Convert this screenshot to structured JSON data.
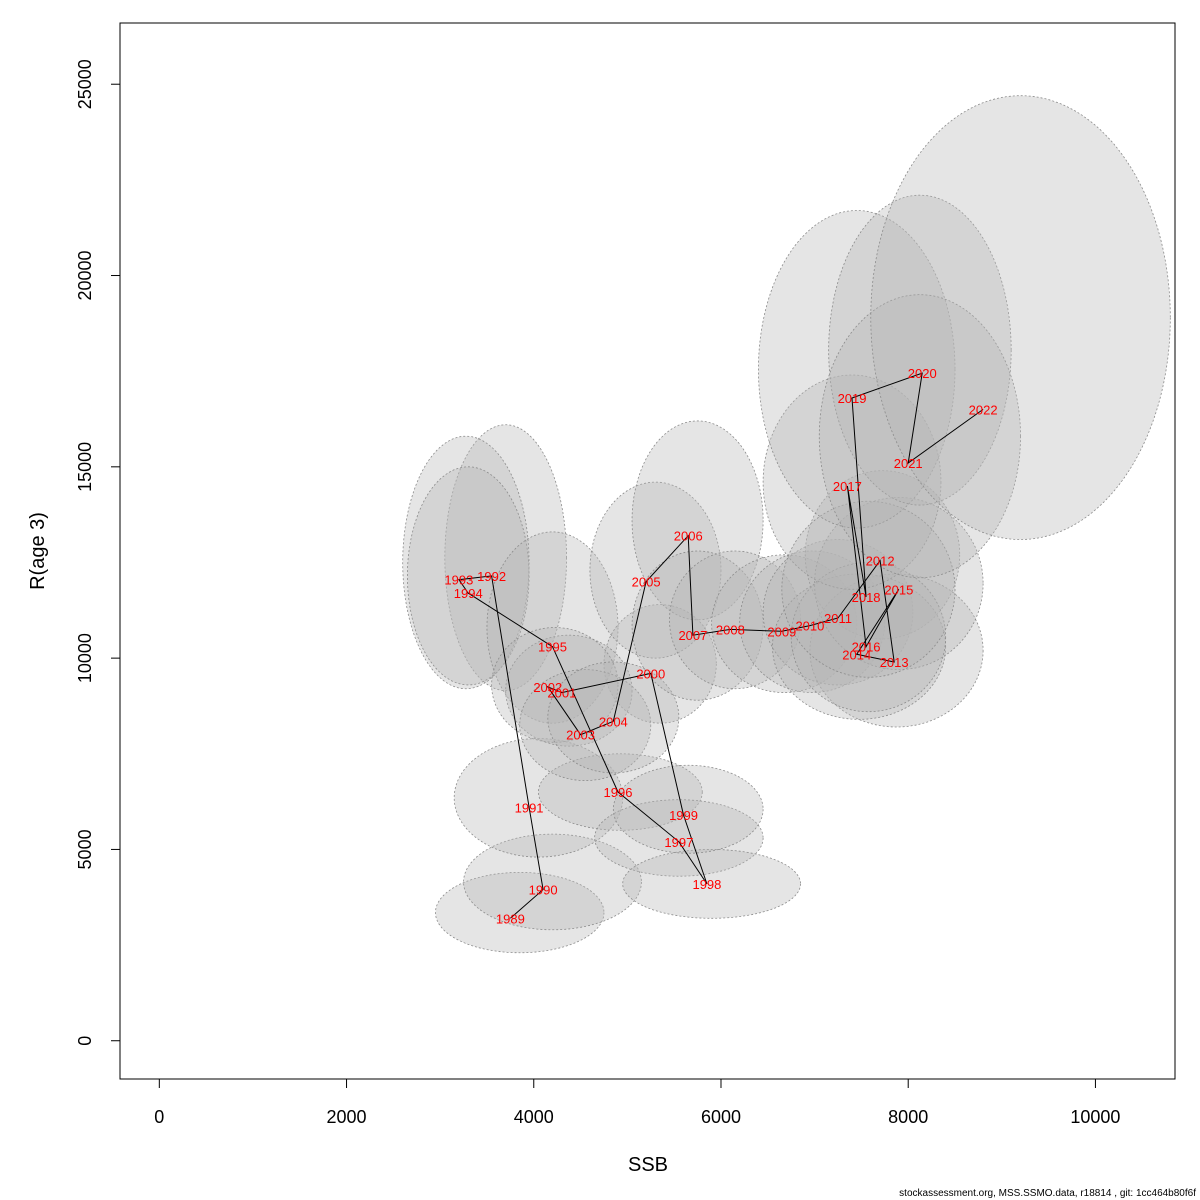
{
  "chart_data": {
    "type": "scatter",
    "xlabel": "SSB",
    "ylabel": "R(age 3)",
    "xlim": [
      -420,
      10850
    ],
    "ylim": [
      -1000,
      26600
    ],
    "x_ticks": [
      0,
      2000,
      4000,
      6000,
      8000,
      10000
    ],
    "y_ticks": [
      0,
      5000,
      10000,
      15000,
      20000,
      25000
    ],
    "x_tick_labels": [
      "0",
      "2000",
      "4000",
      "6000",
      "8000",
      "10000"
    ],
    "y_tick_labels": [
      "0",
      "5000",
      "10000",
      "15000",
      "20000",
      "25000"
    ],
    "grid": false,
    "legend": "none",
    "colors": {
      "label": "#ff0000",
      "path": "#000000",
      "ellipse_fill": "#b4b4b4",
      "ellipse_stroke": "#8c8c8c"
    },
    "points": [
      {
        "year": "1989",
        "ssb": 3750,
        "rec": 3200,
        "ssb_lo": 2950,
        "ssb_hi": 4750,
        "rec_lo": 2300,
        "rec_hi": 4400
      },
      {
        "year": "1990",
        "ssb": 4100,
        "rec": 3950,
        "ssb_lo": 3250,
        "ssb_hi": 5150,
        "rec_lo": 2900,
        "rec_hi": 5400
      },
      {
        "year": "1991",
        "ssb": 3950,
        "rec": 6100,
        "ssb_lo": 3150,
        "ssb_hi": 4950,
        "rec_lo": 4800,
        "rec_hi": 7900
      },
      {
        "year": "1992",
        "ssb": 3550,
        "rec": 12150,
        "ssb_lo": 3050,
        "ssb_hi": 4350,
        "rec_lo": 9150,
        "rec_hi": 16100
      },
      {
        "year": "1993",
        "ssb": 3200,
        "rec": 12050,
        "ssb_lo": 2600,
        "ssb_hi": 3950,
        "rec_lo": 9200,
        "rec_hi": 15800
      },
      {
        "year": "1994",
        "ssb": 3300,
        "rec": 11700,
        "ssb_lo": 2650,
        "ssb_hi": 3950,
        "rec_lo": 9300,
        "rec_hi": 15000
      },
      {
        "year": "1995",
        "ssb": 4200,
        "rec": 10300,
        "ssb_lo": 3500,
        "ssb_hi": 4900,
        "rec_lo": 8300,
        "rec_hi": 13300
      },
      {
        "year": "1996",
        "ssb": 4900,
        "rec": 6500,
        "ssb_lo": 4050,
        "ssb_hi": 5800,
        "rec_lo": 5500,
        "rec_hi": 7500
      },
      {
        "year": "1997",
        "ssb": 5550,
        "rec": 5200,
        "ssb_lo": 4650,
        "ssb_hi": 6450,
        "rec_lo": 4300,
        "rec_hi": 6300
      },
      {
        "year": "1998",
        "ssb": 5850,
        "rec": 4100,
        "ssb_lo": 4950,
        "ssb_hi": 6850,
        "rec_lo": 3200,
        "rec_hi": 5000
      },
      {
        "year": "1999",
        "ssb": 5600,
        "rec": 5900,
        "ssb_lo": 4850,
        "ssb_hi": 6450,
        "rec_lo": 4900,
        "rec_hi": 7200
      },
      {
        "year": "2000",
        "ssb": 5250,
        "rec": 9600,
        "ssb_lo": 4750,
        "ssb_hi": 5950,
        "rec_lo": 8300,
        "rec_hi": 11400
      },
      {
        "year": "2001",
        "ssb": 4300,
        "rec": 9100,
        "ssb_lo": 3700,
        "ssb_hi": 5050,
        "rec_lo": 7700,
        "rec_hi": 10600
      },
      {
        "year": "2002",
        "ssb": 4150,
        "rec": 9250,
        "ssb_lo": 3550,
        "ssb_hi": 4900,
        "rec_lo": 7800,
        "rec_hi": 10800
      },
      {
        "year": "2003",
        "ssb": 4500,
        "rec": 8000,
        "ssb_lo": 3850,
        "ssb_hi": 5250,
        "rec_lo": 6800,
        "rec_hi": 9700
      },
      {
        "year": "2004",
        "ssb": 4850,
        "rec": 8350,
        "ssb_lo": 4150,
        "ssb_hi": 5550,
        "rec_lo": 7000,
        "rec_hi": 9900
      },
      {
        "year": "2005",
        "ssb": 5200,
        "rec": 12000,
        "ssb_lo": 4600,
        "ssb_hi": 6000,
        "rec_lo": 10000,
        "rec_hi": 14600
      },
      {
        "year": "2006",
        "ssb": 5650,
        "rec": 13200,
        "ssb_lo": 5050,
        "ssb_hi": 6450,
        "rec_lo": 11000,
        "rec_hi": 16200
      },
      {
        "year": "2007",
        "ssb": 5700,
        "rec": 10600,
        "ssb_lo": 5050,
        "ssb_hi": 6450,
        "rec_lo": 8900,
        "rec_hi": 12800
      },
      {
        "year": "2008",
        "ssb": 6100,
        "rec": 10750,
        "ssb_lo": 5450,
        "ssb_hi": 6850,
        "rec_lo": 9200,
        "rec_hi": 12800
      },
      {
        "year": "2009",
        "ssb": 6650,
        "rec": 10700,
        "ssb_lo": 5900,
        "ssb_hi": 7450,
        "rec_lo": 9100,
        "rec_hi": 12700
      },
      {
        "year": "2010",
        "ssb": 6950,
        "rec": 10850,
        "ssb_lo": 6200,
        "ssb_hi": 7750,
        "rec_lo": 9100,
        "rec_hi": 12800
      },
      {
        "year": "2011",
        "ssb": 7250,
        "rec": 11050,
        "ssb_lo": 6450,
        "ssb_hi": 8050,
        "rec_lo": 9300,
        "rec_hi": 13100
      },
      {
        "year": "2012",
        "ssb": 7700,
        "rec": 12550,
        "ssb_lo": 6900,
        "ssb_hi": 8550,
        "rec_lo": 10500,
        "rec_hi": 14900
      },
      {
        "year": "2013",
        "ssb": 7850,
        "rec": 9900,
        "ssb_lo": 6950,
        "ssb_hi": 8800,
        "rec_lo": 8200,
        "rec_hi": 12200
      },
      {
        "year": "2014",
        "ssb": 7450,
        "rec": 10100,
        "ssb_lo": 6550,
        "ssb_hi": 8400,
        "rec_lo": 8400,
        "rec_hi": 12200
      },
      {
        "year": "2015",
        "ssb": 7900,
        "rec": 11800,
        "ssb_lo": 7000,
        "ssb_hi": 8800,
        "rec_lo": 9700,
        "rec_hi": 14200
      },
      {
        "year": "2016",
        "ssb": 7550,
        "rec": 10300,
        "ssb_lo": 6750,
        "ssb_hi": 8400,
        "rec_lo": 8600,
        "rec_hi": 12500
      },
      {
        "year": "2017",
        "ssb": 7350,
        "rec": 14500,
        "ssb_lo": 6450,
        "ssb_hi": 8350,
        "rec_lo": 11800,
        "rec_hi": 17400
      },
      {
        "year": "2018",
        "ssb": 7550,
        "rec": 11600,
        "ssb_lo": 6650,
        "ssb_hi": 8500,
        "rec_lo": 9500,
        "rec_hi": 14100
      },
      {
        "year": "2019",
        "ssb": 7400,
        "rec": 16800,
        "ssb_lo": 6400,
        "ssb_hi": 8500,
        "rec_lo": 13400,
        "rec_hi": 21700
      },
      {
        "year": "2020",
        "ssb": 8150,
        "rec": 17450,
        "ssb_lo": 7150,
        "ssb_hi": 9100,
        "rec_lo": 14000,
        "rec_hi": 22100
      },
      {
        "year": "2021",
        "ssb": 8000,
        "rec": 15100,
        "ssb_lo": 7050,
        "ssb_hi": 9200,
        "rec_lo": 12100,
        "rec_hi": 19500
      },
      {
        "year": "2022",
        "ssb": 8800,
        "rec": 16500,
        "ssb_lo": 7600,
        "ssb_hi": 10800,
        "rec_lo": 13100,
        "rec_hi": 24700
      }
    ]
  },
  "footer": "stockassessment.org, MSS.SSMO.data, r18814 , git: 1cc464b80f6f"
}
